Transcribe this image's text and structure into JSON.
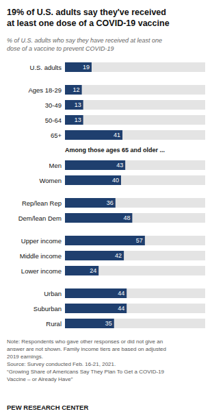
{
  "chart_data": {
    "type": "bar",
    "orientation": "horizontal",
    "title": "19% of U.S. adults say they've received\nat least one dose of a COVID-19 vaccine",
    "subtitle": "% of U.S. adults who say they have received at least one\ndose of a vaccine to prevent COVID-19",
    "categories": [
      "U.S. adults",
      "Ages 18-29",
      "30-49",
      "50-64",
      "65+",
      "Men",
      "Women",
      "Rep/lean Rep",
      "Dem/lean Dem",
      "Upper income",
      "Middle income",
      "Lower income",
      "Urban",
      "Suburban",
      "Rural"
    ],
    "values": [
      19,
      12,
      13,
      13,
      41,
      43,
      40,
      36,
      48,
      57,
      42,
      24,
      44,
      44,
      35
    ],
    "color": "#1f3f6e",
    "xlim": [
      0,
      100
    ],
    "data_labels": true,
    "tick_labels": "y",
    "grid": false,
    "annotations": [
      "Among those ages 65 and older ..."
    ],
    "notes": [
      "Note: Respondents who gave other responses or did not give an",
      "answer are not shown. Family income tiers are based on adjusted",
      "2019 earnings.",
      "Source: Survey conducted Feb. 16-21, 2021.",
      "“Growing Share of Americans Say They Plan To Get a COVID-19",
      "Vaccine – or Already Have”"
    ],
    "footer": "PEW RESEARCH CENTER"
  }
}
